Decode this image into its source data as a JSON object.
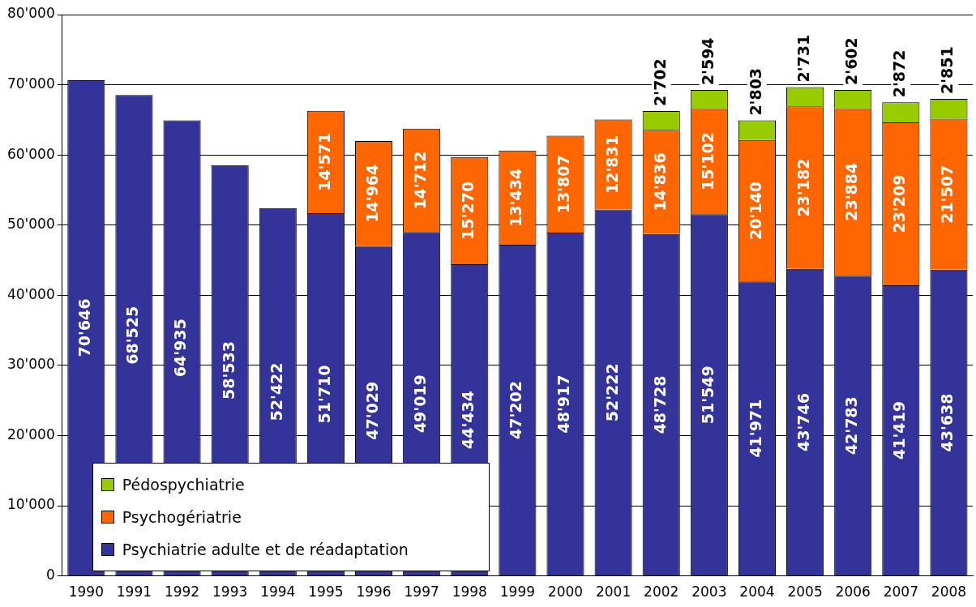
{
  "chart_data": {
    "type": "bar",
    "stacked": true,
    "categories": [
      "1990",
      "1991",
      "1992",
      "1993",
      "1994",
      "1995",
      "1996",
      "1997",
      "1998",
      "1999",
      "2000",
      "2001",
      "2002",
      "2003",
      "2004",
      "2005",
      "2006",
      "2007",
      "2008"
    ],
    "series": [
      {
        "name": "Psychiatrie adulte et de réadaptation",
        "color": "#333399",
        "values": [
          70646,
          68525,
          64935,
          58533,
          52422,
          51710,
          47029,
          49019,
          44434,
          47202,
          48917,
          52222,
          48728,
          51549,
          41971,
          43746,
          42783,
          41419,
          43638
        ],
        "value_labels": [
          "70'646",
          "68'525",
          "64'935",
          "58'533",
          "52'422",
          "51'710",
          "47'029",
          "49'019",
          "44'434",
          "47'202",
          "48'917",
          "52'222",
          "48'728",
          "51'549",
          "41'971",
          "43'746",
          "42'783",
          "41'419",
          "43'638"
        ]
      },
      {
        "name": "Psychogériatrie",
        "color": "#ff6600",
        "values": [
          null,
          null,
          null,
          null,
          null,
          14571,
          14964,
          14712,
          15270,
          13434,
          13807,
          12831,
          14836,
          15102,
          20140,
          23182,
          23884,
          23209,
          21507
        ],
        "value_labels": [
          null,
          null,
          null,
          null,
          null,
          "14'571",
          "14'964",
          "14'712",
          "15'270",
          "13'434",
          "13'807",
          "12'831",
          "14'836",
          "15'102",
          "20'140",
          "23'182",
          "23'884",
          "23'209",
          "21'507"
        ]
      },
      {
        "name": "Pédospychiatrie",
        "color": "#99cc00",
        "values": [
          null,
          null,
          null,
          null,
          null,
          null,
          null,
          null,
          null,
          null,
          null,
          null,
          2702,
          2594,
          2803,
          2731,
          2602,
          2872,
          2851
        ],
        "value_labels": [
          null,
          null,
          null,
          null,
          null,
          null,
          null,
          null,
          null,
          null,
          null,
          null,
          "2'702",
          "2'594",
          "2'803",
          "2'731",
          "2'602",
          "2'872",
          "2'851"
        ]
      }
    ],
    "ylim": [
      0,
      80000
    ],
    "yticks": [
      0,
      {
        "value": 10000,
        "label": "10'000"
      },
      {
        "value": 20000,
        "label": "20'000"
      },
      {
        "value": 30000,
        "label": "30'000"
      },
      {
        "value": 40000,
        "label": "40'000"
      },
      {
        "value": 50000,
        "label": "50'000"
      },
      {
        "value": 60000,
        "label": "60'000"
      },
      {
        "value": 70000,
        "label": "70'000"
      },
      {
        "value": 80000,
        "label": "80'000"
      }
    ],
    "grid": "y",
    "legend": "bottom left"
  }
}
